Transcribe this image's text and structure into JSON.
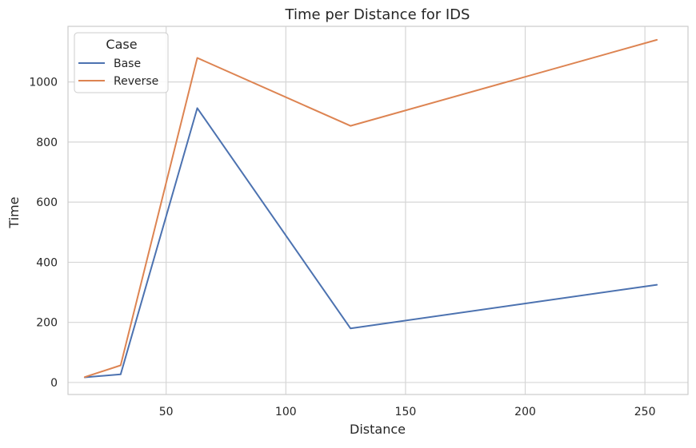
{
  "chart_data": {
    "type": "line",
    "title": "Time per Distance for IDS",
    "xlabel": "Distance",
    "ylabel": "Time",
    "xlim": [
      9,
      268
    ],
    "ylim": [
      -40,
      1185
    ],
    "xticks": [
      50,
      100,
      150,
      200,
      250
    ],
    "yticks": [
      0,
      200,
      400,
      600,
      800,
      1000
    ],
    "grid": true,
    "legend": {
      "title": "Case",
      "placement": "top-left"
    },
    "x": [
      16,
      31,
      63,
      127,
      255
    ],
    "series": [
      {
        "name": "Base",
        "color": "#4c72b0",
        "values": [
          17,
          27,
          913,
          180,
          325
        ]
      },
      {
        "name": "Reverse",
        "color": "#dd8452",
        "values": [
          18,
          57,
          1080,
          854,
          1140
        ]
      }
    ]
  }
}
